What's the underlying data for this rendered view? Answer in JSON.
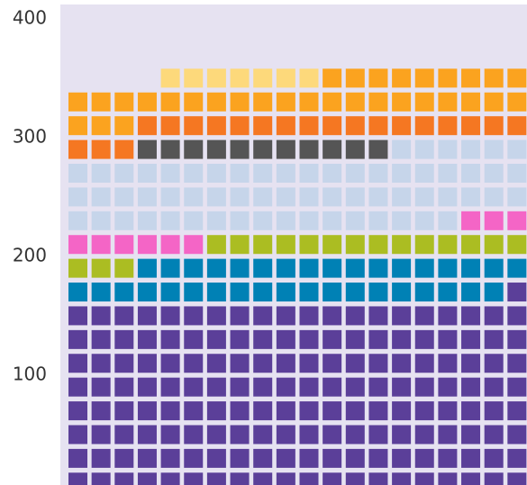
{
  "chart_data": {
    "type": "waffle",
    "series": [
      {
        "color": "#5b3f99",
        "values": [
          161
        ]
      },
      {
        "color": "#0081b5",
        "values": [
          36
        ]
      },
      {
        "color": "#abbd22",
        "values": [
          17
        ]
      },
      {
        "color": "#f465c6",
        "values": [
          9
        ]
      },
      {
        "color": "#c6d5ea",
        "values": [
          63
        ]
      },
      {
        "color": "#555555",
        "values": [
          11
        ]
      },
      {
        "color": "#f57722",
        "values": [
          20
        ]
      },
      {
        "color": "#fba31f",
        "values": [
          32
        ]
      },
      {
        "color": "#fdd97b",
        "values": [
          7
        ]
      }
    ],
    "ylim": [
      0,
      412
    ],
    "yticks": [
      100,
      200,
      300,
      400
    ]
  }
}
